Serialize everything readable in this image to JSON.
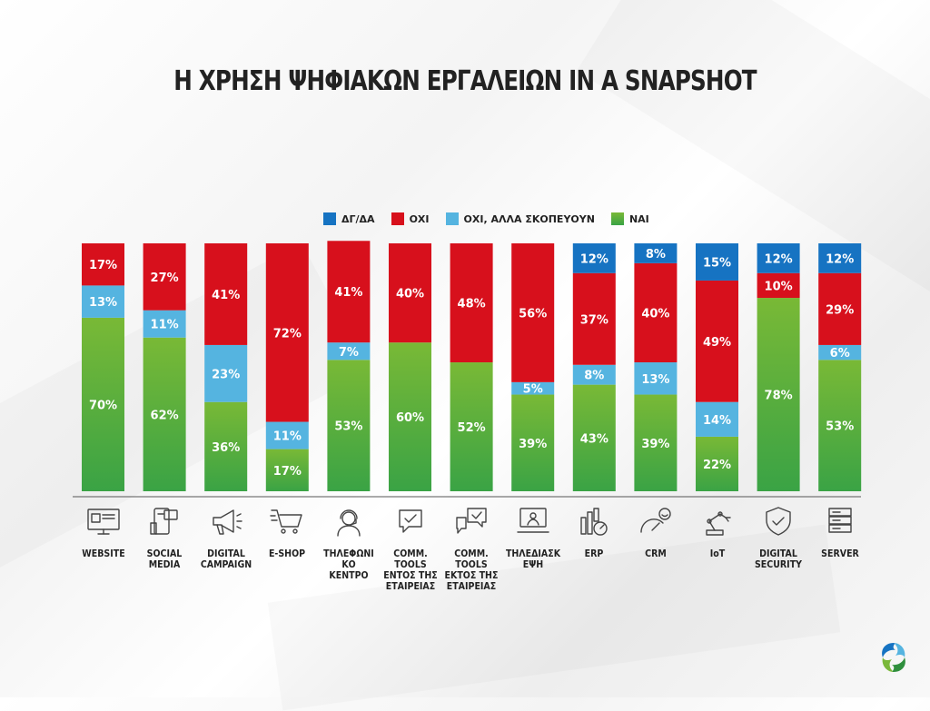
{
  "title": "Η ΧΡΗΣΗ ΨΗΦΙΑΚΩΝ ΕΡΓΑΛΕΙΩΝ IN A SNAPSHOT",
  "colors": {
    "dk": "#1673c2",
    "no": "#d7101c",
    "plan": "#55b4e0",
    "yes_top": "#79b936",
    "yes_bottom": "#3aa345"
  },
  "legend": [
    {
      "key": "dk",
      "label": "ΔΓ/ΔΑ"
    },
    {
      "key": "no",
      "label": "ΟΧΙ"
    },
    {
      "key": "plan",
      "label": "ΟΧΙ, ΑΛΛΑ ΣΚΟΠΕΥΟΥΝ"
    },
    {
      "key": "yes",
      "label": "ΝΑΙ"
    }
  ],
  "chart_data": {
    "type": "bar",
    "stacked": true,
    "unit": "%",
    "categories": [
      "WEBSITE",
      "SOCIAL MEDIA",
      "DIGITAL CAMPAIGN",
      "E-SHOP",
      "ΤΗΛΕΦΩΝΙΚΟ ΚΕΝΤΡΟ",
      "COMM. TOOLS ΕΝΤΟΣ ΤΗΣ ΕΤΑΙΡΕΙΑΣ",
      "COMM. TOOLS ΕΚΤΟΣ ΤΗΣ ΕΤΑΙΡΕΙΑΣ",
      "ΤΗΛΕΔΙΑΣΚΕΨΗ",
      "ERP",
      "CRM",
      "IoT",
      "DIGITAL SECURITY",
      "SERVER"
    ],
    "series": [
      {
        "name": "ΝΑΙ",
        "key": "yes",
        "values": [
          70,
          62,
          36,
          17,
          53,
          60,
          52,
          39,
          43,
          39,
          22,
          78,
          53
        ]
      },
      {
        "name": "ΟΧΙ, ΑΛΛΑ ΣΚΟΠΕΥΟΥΝ",
        "key": "plan",
        "values": [
          13,
          11,
          23,
          11,
          7,
          0,
          0,
          5,
          8,
          13,
          14,
          0,
          6
        ]
      },
      {
        "name": "ΟΧΙ",
        "key": "no",
        "values": [
          17,
          27,
          41,
          72,
          41,
          40,
          48,
          56,
          37,
          40,
          49,
          10,
          29
        ]
      },
      {
        "name": "ΔΓ/ΔΑ",
        "key": "dk",
        "values": [
          0,
          0,
          0,
          0,
          0,
          0,
          0,
          0,
          12,
          8,
          15,
          12,
          12
        ]
      }
    ],
    "ylim": [
      0,
      100
    ],
    "legend_position": "top"
  },
  "icons": [
    "monitor-icon",
    "social-media-icon",
    "megaphone-icon",
    "shopping-cart-icon",
    "headset-agent-icon",
    "chat-check-icon",
    "chat-bubbles-check-icon",
    "video-conference-icon",
    "bar-chart-gauge-icon",
    "speedometer-smile-icon",
    "robot-arm-icon",
    "shield-check-icon",
    "server-icon"
  ],
  "labels": [
    [
      "WEBSITE"
    ],
    [
      "SOCIAL",
      "MEDIA"
    ],
    [
      "DIGITAL",
      "CAMPAIGN"
    ],
    [
      "E-SHOP"
    ],
    [
      "ΤΗΛΕΦΩΝΙΚΟ",
      "ΚΕΝΤΡΟ"
    ],
    [
      "COMM.",
      "TOOLS",
      "ΕΝΤΟΣ ΤΗΣ",
      "ΕΤΑΙΡΕΙΑΣ"
    ],
    [
      "COMM.",
      "TOOLS",
      "ΕΚΤΟΣ ΤΗΣ",
      "ΕΤΑΙΡΕΙΑΣ"
    ],
    [
      "ΤΗΛΕΔΙΑΣΚΕΨΗ"
    ],
    [
      "ERP"
    ],
    [
      "CRM"
    ],
    [
      "IoT"
    ],
    [
      "DIGITAL",
      "SECURITY"
    ],
    [
      "SERVER"
    ]
  ]
}
